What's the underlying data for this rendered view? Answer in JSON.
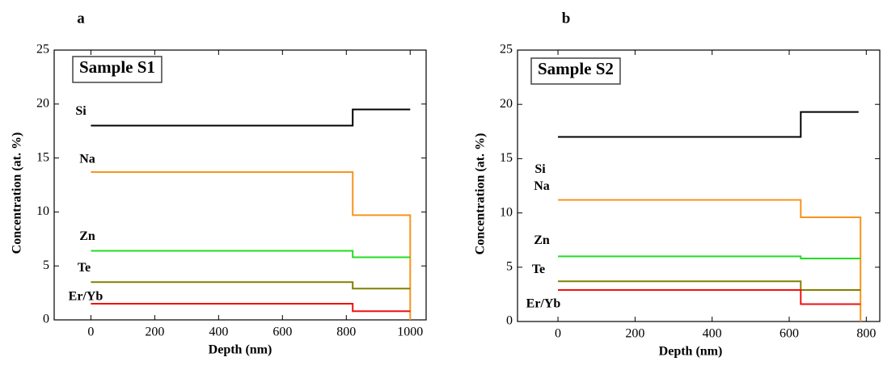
{
  "chart_data": [
    {
      "type": "line",
      "panel": "a",
      "title": "Sample S1",
      "x_label": "Depth (nm)",
      "y_label": "Concentration (at. %)",
      "xlim": [
        -115,
        1050
      ],
      "xticks": [
        0,
        200,
        400,
        600,
        800,
        1000
      ],
      "ylim": [
        0,
        25
      ],
      "yticks": [
        0,
        5,
        10,
        15,
        20,
        25
      ],
      "series": [
        {
          "name": "Si",
          "color": "#000000",
          "x": [
            0,
            820,
            820,
            1000
          ],
          "values": [
            18,
            18,
            19.5,
            19.5
          ]
        },
        {
          "name": "Na",
          "color": "#f7941d",
          "x": [
            0,
            820,
            820,
            1000,
            1000
          ],
          "values": [
            13.7,
            13.7,
            9.7,
            9.7,
            0
          ]
        },
        {
          "name": "Zn",
          "color": "#22dd22",
          "x": [
            0,
            820,
            820,
            1000
          ],
          "values": [
            6.4,
            6.4,
            5.8,
            5.8
          ]
        },
        {
          "name": "Te",
          "color": "#808000",
          "x": [
            0,
            820,
            820,
            1000
          ],
          "values": [
            3.5,
            3.5,
            2.9,
            2.9
          ]
        },
        {
          "name": "Er/Yb",
          "color": "#ee1111",
          "x": [
            0,
            820,
            820,
            1000
          ],
          "values": [
            1.5,
            1.5,
            0.8,
            0.8
          ]
        }
      ]
    },
    {
      "type": "line",
      "panel": "b",
      "title": "Sample S2",
      "x_label": "Depth (nm)",
      "y_label": "Concentration (at. %)",
      "xlim": [
        -105,
        835
      ],
      "xticks": [
        0,
        200,
        400,
        600,
        800
      ],
      "ylim": [
        0,
        25
      ],
      "yticks": [
        0,
        5,
        10,
        15,
        20,
        25
      ],
      "series": [
        {
          "name": "Si",
          "color": "#000000",
          "x": [
            0,
            630,
            630,
            780
          ],
          "values": [
            17,
            17,
            19.3,
            19.3
          ]
        },
        {
          "name": "Na",
          "color": "#f7941d",
          "x": [
            0,
            630,
            630,
            785,
            785
          ],
          "values": [
            11.2,
            11.2,
            9.6,
            9.6,
            0
          ]
        },
        {
          "name": "Zn",
          "color": "#22dd22",
          "x": [
            0,
            630,
            630,
            785
          ],
          "values": [
            6.0,
            6.0,
            5.8,
            5.8
          ]
        },
        {
          "name": "Te",
          "color": "#808000",
          "x": [
            0,
            630,
            630,
            785
          ],
          "values": [
            3.7,
            3.7,
            2.9,
            2.9
          ]
        },
        {
          "name": "Er/Yb",
          "color": "#ee1111",
          "x": [
            0,
            630,
            630,
            785
          ],
          "values": [
            2.9,
            2.9,
            1.6,
            1.6
          ]
        }
      ]
    }
  ]
}
